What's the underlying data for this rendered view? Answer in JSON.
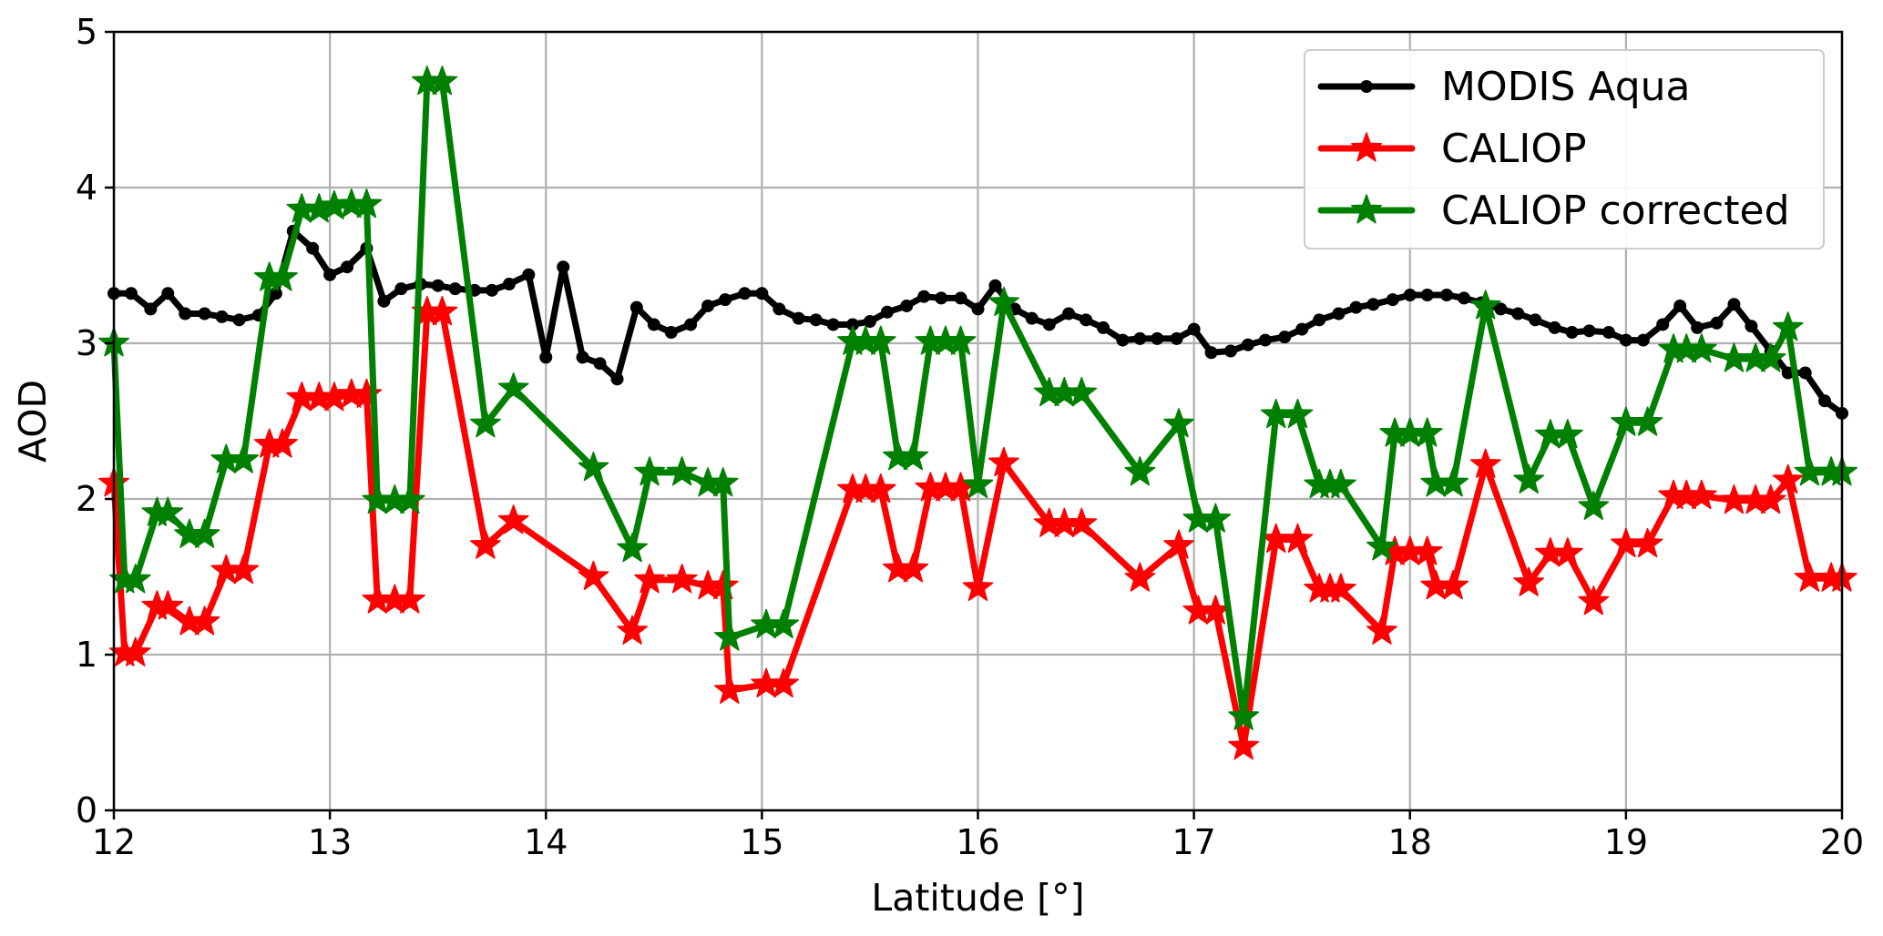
{
  "chart_data": {
    "type": "line",
    "xlabel": "Latitude [°]",
    "ylabel": "AOD",
    "xlim": [
      12,
      20
    ],
    "ylim": [
      0,
      5
    ],
    "xticks": [
      12,
      13,
      14,
      15,
      16,
      17,
      18,
      19,
      20
    ],
    "yticks": [
      0,
      1,
      2,
      3,
      4,
      5
    ],
    "xtick_labels": [
      "12",
      "13",
      "14",
      "15",
      "16",
      "17",
      "18",
      "19",
      "20"
    ],
    "ytick_labels": [
      "0",
      "1",
      "2",
      "3",
      "4",
      "5"
    ],
    "grid": true,
    "legend_position": "top-right",
    "series": [
      {
        "name": "MODIS Aqua",
        "color": "#000000",
        "marker": "circle",
        "x": [
          12.0,
          12.08,
          12.17,
          12.25,
          12.33,
          12.42,
          12.5,
          12.58,
          12.67,
          12.75,
          12.83,
          12.92,
          13.0,
          13.08,
          13.17,
          13.25,
          13.33,
          13.42,
          13.5,
          13.58,
          13.67,
          13.75,
          13.83,
          13.92,
          14.0,
          14.08,
          14.17,
          14.25,
          14.33,
          14.42,
          14.5,
          14.58,
          14.67,
          14.75,
          14.83,
          14.92,
          15.0,
          15.08,
          15.17,
          15.25,
          15.33,
          15.42,
          15.5,
          15.58,
          15.67,
          15.75,
          15.83,
          15.92,
          16.0,
          16.08,
          16.17,
          16.25,
          16.33,
          16.42,
          16.5,
          16.58,
          16.67,
          16.75,
          16.83,
          16.92,
          17.0,
          17.08,
          17.17,
          17.25,
          17.33,
          17.42,
          17.5,
          17.58,
          17.67,
          17.75,
          17.83,
          17.92,
          18.0,
          18.08,
          18.17,
          18.25,
          18.33,
          18.42,
          18.5,
          18.58,
          18.67,
          18.75,
          18.83,
          18.92,
          19.0,
          19.08,
          19.17,
          19.25,
          19.33,
          19.42,
          19.5,
          19.58,
          19.67,
          19.75,
          19.83,
          19.92,
          20.0
        ],
        "y": [
          3.32,
          3.32,
          3.22,
          3.32,
          3.19,
          3.19,
          3.17,
          3.15,
          3.18,
          3.32,
          3.72,
          3.61,
          3.44,
          3.49,
          3.61,
          3.27,
          3.35,
          3.38,
          3.37,
          3.35,
          3.34,
          3.34,
          3.38,
          3.44,
          2.91,
          3.49,
          2.91,
          2.87,
          2.77,
          3.23,
          3.12,
          3.07,
          3.12,
          3.24,
          3.28,
          3.32,
          3.32,
          3.22,
          3.16,
          3.15,
          3.12,
          3.12,
          3.14,
          3.2,
          3.24,
          3.3,
          3.29,
          3.29,
          3.22,
          3.37,
          3.22,
          3.16,
          3.12,
          3.19,
          3.15,
          3.1,
          3.02,
          3.03,
          3.03,
          3.03,
          3.09,
          2.94,
          2.95,
          2.99,
          3.02,
          3.04,
          3.09,
          3.15,
          3.19,
          3.23,
          3.25,
          3.28,
          3.31,
          3.31,
          3.31,
          3.29,
          3.26,
          3.22,
          3.19,
          3.15,
          3.1,
          3.07,
          3.08,
          3.07,
          3.02,
          3.02,
          3.12,
          3.24,
          3.1,
          3.13,
          3.25,
          3.11,
          2.95,
          2.81,
          2.81,
          2.63,
          2.55
        ]
      },
      {
        "name": "CALIOP",
        "color": "#ff0000",
        "marker": "star",
        "x": [
          12.0,
          12.05,
          12.1,
          12.2,
          12.25,
          12.35,
          12.42,
          12.52,
          12.6,
          12.72,
          12.78,
          12.87,
          12.95,
          13.02,
          13.1,
          13.17,
          13.22,
          13.3,
          13.37,
          13.45,
          13.52,
          13.72,
          13.85,
          14.22,
          14.4,
          14.48,
          14.63,
          14.75,
          14.82,
          14.85,
          15.02,
          15.1,
          15.42,
          15.48,
          15.55,
          15.63,
          15.7,
          15.78,
          15.85,
          15.92,
          16.0,
          16.12,
          16.33,
          16.4,
          16.48,
          16.75,
          16.93,
          17.02,
          17.1,
          17.23,
          17.38,
          17.48,
          17.58,
          17.63,
          17.68,
          17.87,
          17.93,
          18.0,
          18.08,
          18.12,
          18.2,
          18.35,
          18.55,
          18.65,
          18.73,
          18.85,
          19.0,
          19.1,
          19.22,
          19.28,
          19.35,
          19.5,
          19.6,
          19.67,
          19.75,
          19.85,
          19.95,
          20.0
        ],
        "y": [
          2.1,
          1.01,
          1.01,
          1.31,
          1.31,
          1.21,
          1.21,
          1.54,
          1.54,
          2.35,
          2.35,
          2.65,
          2.65,
          2.65,
          2.67,
          2.67,
          1.35,
          1.35,
          1.35,
          3.2,
          3.2,
          1.7,
          1.86,
          1.5,
          1.15,
          1.48,
          1.48,
          1.44,
          1.44,
          0.77,
          0.81,
          0.81,
          2.06,
          2.06,
          2.06,
          1.55,
          1.55,
          2.07,
          2.07,
          2.07,
          1.43,
          2.23,
          1.84,
          1.84,
          1.84,
          1.49,
          1.7,
          1.28,
          1.28,
          0.41,
          1.74,
          1.74,
          1.42,
          1.42,
          1.42,
          1.15,
          1.66,
          1.66,
          1.66,
          1.44,
          1.44,
          2.22,
          1.46,
          1.65,
          1.65,
          1.34,
          1.71,
          1.71,
          2.02,
          2.02,
          2.02,
          1.99,
          1.99,
          1.99,
          2.12,
          1.49,
          1.49,
          1.49
        ]
      },
      {
        "name": "CALIOP corrected",
        "color": "#008000",
        "marker": "star",
        "x": [
          12.0,
          12.05,
          12.1,
          12.2,
          12.25,
          12.35,
          12.42,
          12.52,
          12.6,
          12.72,
          12.78,
          12.87,
          12.95,
          13.02,
          13.1,
          13.17,
          13.22,
          13.3,
          13.37,
          13.45,
          13.52,
          13.72,
          13.85,
          14.22,
          14.4,
          14.48,
          14.63,
          14.75,
          14.82,
          14.85,
          15.02,
          15.1,
          15.42,
          15.48,
          15.55,
          15.63,
          15.7,
          15.78,
          15.85,
          15.92,
          16.0,
          16.12,
          16.33,
          16.4,
          16.48,
          16.75,
          16.93,
          17.02,
          17.1,
          17.23,
          17.38,
          17.48,
          17.58,
          17.63,
          17.68,
          17.87,
          17.93,
          18.0,
          18.08,
          18.12,
          18.2,
          18.35,
          18.55,
          18.65,
          18.73,
          18.85,
          19.0,
          19.1,
          19.22,
          19.28,
          19.35,
          19.5,
          19.6,
          19.67,
          19.75,
          19.85,
          19.95,
          20.0
        ],
        "y": [
          3.0,
          1.48,
          1.48,
          1.91,
          1.91,
          1.77,
          1.77,
          2.25,
          2.25,
          3.42,
          3.42,
          3.86,
          3.86,
          3.88,
          3.89,
          3.89,
          1.99,
          1.99,
          1.99,
          4.68,
          4.68,
          2.48,
          2.71,
          2.2,
          1.68,
          2.17,
          2.17,
          2.1,
          2.1,
          1.11,
          1.19,
          1.19,
          3.01,
          3.01,
          3.01,
          2.27,
          2.27,
          3.01,
          3.01,
          3.01,
          2.09,
          3.26,
          2.68,
          2.68,
          2.68,
          2.17,
          2.48,
          1.87,
          1.87,
          0.6,
          2.54,
          2.54,
          2.09,
          2.09,
          2.09,
          1.69,
          2.42,
          2.42,
          2.42,
          2.1,
          2.1,
          3.24,
          2.12,
          2.41,
          2.41,
          1.95,
          2.49,
          2.49,
          2.96,
          2.96,
          2.96,
          2.9,
          2.9,
          2.9,
          3.1,
          2.17,
          2.17,
          2.17
        ]
      }
    ]
  }
}
